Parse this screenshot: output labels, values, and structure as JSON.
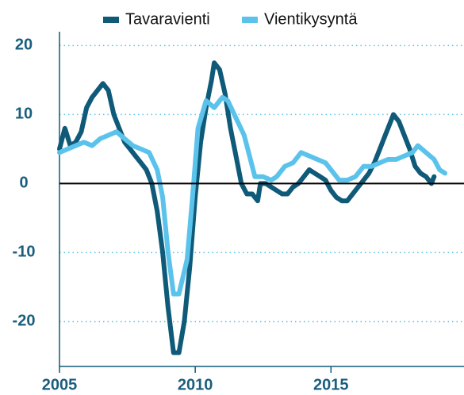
{
  "chart_data": {
    "type": "line",
    "series": [
      {
        "name": "Tavaravienti",
        "color": "#0f5a78",
        "x": [
          2005.0,
          2005.2,
          2005.4,
          2005.6,
          2005.8,
          2006.0,
          2006.2,
          2006.4,
          2006.6,
          2006.8,
          2007.0,
          2007.2,
          2007.4,
          2007.6,
          2007.8,
          2008.0,
          2008.2,
          2008.4,
          2008.6,
          2008.8,
          2009.0,
          2009.2,
          2009.4,
          2009.6,
          2009.8,
          2010.0,
          2010.2,
          2010.4,
          2010.6,
          2010.7,
          2010.9,
          2011.1,
          2011.3,
          2011.5,
          2011.7,
          2011.9,
          2012.1,
          2012.3,
          2012.4,
          2012.6,
          2012.8,
          2013.0,
          2013.2,
          2013.4,
          2013.6,
          2013.8,
          2014.0,
          2014.2,
          2014.4,
          2014.6,
          2014.8,
          2015.0,
          2015.2,
          2015.4,
          2015.6,
          2015.8,
          2016.0,
          2016.2,
          2016.4,
          2016.6,
          2016.8,
          2017.0,
          2017.2,
          2017.3,
          2017.5,
          2017.7,
          2017.9,
          2018.1,
          2018.3,
          2018.5,
          2018.7,
          2018.8
        ],
        "values": [
          5,
          8,
          5.5,
          6,
          7.5,
          11,
          12.5,
          13.5,
          14.5,
          13.5,
          10,
          8,
          6,
          5,
          4,
          3,
          2,
          0,
          -4,
          -10,
          -18,
          -24.5,
          -24.5,
          -20,
          -12,
          -2,
          6,
          11,
          15,
          17.5,
          16.5,
          13,
          8,
          4,
          0,
          -1.5,
          -1.5,
          -2.5,
          0,
          0,
          -0.5,
          -1,
          -1.5,
          -1.5,
          -0.5,
          0,
          1,
          2,
          1.5,
          1,
          0.5,
          -1,
          -2,
          -2.5,
          -2.5,
          -1.5,
          -0.5,
          0.5,
          1.5,
          3,
          5,
          7,
          9,
          10,
          9,
          7,
          5,
          2.5,
          1.5,
          1,
          0,
          1
        ]
      },
      {
        "name": "Vientikysyntä",
        "color": "#5bc3eb",
        "x": [
          2005.0,
          2005.3,
          2005.6,
          2005.9,
          2006.2,
          2006.5,
          2006.8,
          2007.1,
          2007.4,
          2007.7,
          2008.0,
          2008.3,
          2008.6,
          2008.8,
          2009.0,
          2009.2,
          2009.4,
          2009.7,
          2009.9,
          2010.1,
          2010.4,
          2010.7,
          2011.0,
          2011.2,
          2011.5,
          2011.8,
          2012.0,
          2012.2,
          2012.5,
          2012.8,
          2013.0,
          2013.3,
          2013.6,
          2013.9,
          2014.2,
          2014.5,
          2014.8,
          2015.0,
          2015.3,
          2015.6,
          2015.9,
          2016.2,
          2016.5,
          2016.8,
          2017.1,
          2017.4,
          2017.7,
          2018.0,
          2018.2,
          2018.5,
          2018.8,
          2019.0,
          2019.2
        ],
        "values": [
          4.5,
          5,
          5.5,
          6,
          5.5,
          6.5,
          7,
          7.5,
          6.5,
          5.5,
          5,
          4.5,
          2,
          -2,
          -10,
          -16,
          -16,
          -11,
          -2,
          8,
          12,
          11,
          12.5,
          12,
          9.5,
          7,
          4,
          1,
          1,
          0.5,
          1,
          2.5,
          3,
          4.5,
          4,
          3.5,
          3,
          2,
          0.5,
          0.5,
          1,
          2.5,
          2.5,
          3,
          3.5,
          3.5,
          4,
          4.5,
          5.5,
          4.5,
          3.5,
          2,
          1.5
        ]
      }
    ],
    "xlim": [
      2005,
      2019.9
    ],
    "xticks": [
      2005,
      2010,
      2015
    ],
    "ylim": [
      -26.5,
      22
    ],
    "yticks": [
      20,
      10,
      0,
      -10,
      -20
    ],
    "grid": true,
    "legend": "top"
  }
}
